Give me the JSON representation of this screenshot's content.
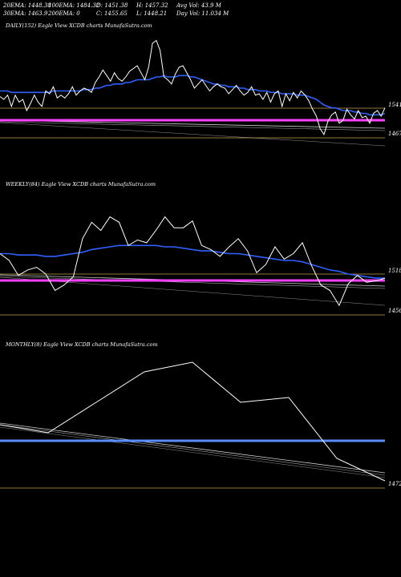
{
  "stats": {
    "ema20": "20EMA: 1448.38",
    "ema100": "100EMA: 1484.32",
    "open": "O: 1451.38",
    "high": "H: 1457.32",
    "avg_vol": "Avg Vol: 43.9 M",
    "ema30": "30EMA: 1463.9",
    "ema200": "200EMA: 0",
    "close": "C: 1455.65",
    "low": "L: 1448.21",
    "day_vol": "Day Vol: 11.034 M"
  },
  "colors": {
    "price": "#ffffff",
    "ema": "#3060ff",
    "level": "#ff40ff",
    "moving_avg": "#cccccc",
    "hline": "#c8a050"
  },
  "chart_data": [
    {
      "type": "line",
      "title": "DAILY(152) Eagle View XCDB charts MunafaSutra.com",
      "levels": {
        "upper": "1541",
        "lower": "1467"
      },
      "price": [
        0.54,
        0.52,
        0.55,
        0.47,
        0.55,
        0.5,
        0.52,
        0.44,
        0.49,
        0.55,
        0.5,
        0.47,
        0.58,
        0.56,
        0.61,
        0.53,
        0.55,
        0.53,
        0.56,
        0.61,
        0.55,
        0.58,
        0.6,
        0.59,
        0.57,
        0.64,
        0.68,
        0.73,
        0.69,
        0.65,
        0.71,
        0.67,
        0.65,
        0.68,
        0.72,
        0.74,
        0.76,
        0.71,
        0.66,
        0.75,
        0.92,
        0.94,
        0.87,
        0.68,
        0.66,
        0.63,
        0.7,
        0.75,
        0.76,
        0.71,
        0.66,
        0.6,
        0.63,
        0.66,
        0.62,
        0.58,
        0.61,
        0.63,
        0.61,
        0.6,
        0.56,
        0.59,
        0.62,
        0.58,
        0.55,
        0.57,
        0.61,
        0.55,
        0.56,
        0.52,
        0.57,
        0.5,
        0.56,
        0.58,
        0.47,
        0.56,
        0.51,
        0.57,
        0.53,
        0.58,
        0.55,
        0.51,
        0.45,
        0.4,
        0.31,
        0.27,
        0.36,
        0.41,
        0.43,
        0.35,
        0.37,
        0.45,
        0.41,
        0.38,
        0.44,
        0.39,
        0.4,
        0.35,
        0.42,
        0.44,
        0.4,
        0.46
      ],
      "ema": [
        0.58,
        0.58,
        0.58,
        0.57,
        0.57,
        0.57,
        0.57,
        0.57,
        0.57,
        0.57,
        0.57,
        0.57,
        0.57,
        0.57,
        0.58,
        0.58,
        0.58,
        0.58,
        0.58,
        0.58,
        0.58,
        0.58,
        0.59,
        0.59,
        0.59,
        0.6,
        0.6,
        0.61,
        0.62,
        0.62,
        0.63,
        0.63,
        0.63,
        0.64,
        0.64,
        0.65,
        0.66,
        0.66,
        0.66,
        0.66,
        0.67,
        0.68,
        0.68,
        0.69,
        0.68,
        0.68,
        0.68,
        0.69,
        0.69,
        0.69,
        0.68,
        0.68,
        0.67,
        0.66,
        0.65,
        0.64,
        0.63,
        0.63,
        0.62,
        0.62,
        0.61,
        0.61,
        0.61,
        0.6,
        0.6,
        0.59,
        0.59,
        0.59,
        0.58,
        0.58,
        0.58,
        0.57,
        0.57,
        0.57,
        0.56,
        0.56,
        0.56,
        0.56,
        0.55,
        0.55,
        0.55,
        0.54,
        0.53,
        0.52,
        0.5,
        0.48,
        0.47,
        0.46,
        0.46,
        0.45,
        0.44,
        0.44,
        0.44,
        0.43,
        0.43,
        0.42,
        0.42,
        0.41,
        0.41,
        0.41,
        0.41,
        0.42
      ]
    },
    {
      "type": "line",
      "title": "WEEKLY(84) Eagle View XCDB charts MunafaSutra.com",
      "levels": {
        "upper": "1518",
        "lower": "1456"
      },
      "price": [
        0.55,
        0.5,
        0.39,
        0.43,
        0.45,
        0.4,
        0.28,
        0.32,
        0.38,
        0.66,
        0.78,
        0.72,
        0.82,
        0.78,
        0.61,
        0.65,
        0.63,
        0.72,
        0.82,
        0.74,
        0.74,
        0.79,
        0.61,
        0.58,
        0.53,
        0.6,
        0.66,
        0.57,
        0.41,
        0.47,
        0.6,
        0.51,
        0.55,
        0.63,
        0.46,
        0.32,
        0.28,
        0.17,
        0.33,
        0.39,
        0.34,
        0.35,
        0.37
      ],
      "ema": [
        0.55,
        0.55,
        0.54,
        0.54,
        0.54,
        0.53,
        0.53,
        0.54,
        0.55,
        0.56,
        0.58,
        0.59,
        0.6,
        0.61,
        0.61,
        0.61,
        0.61,
        0.61,
        0.6,
        0.6,
        0.59,
        0.58,
        0.57,
        0.57,
        0.56,
        0.55,
        0.55,
        0.54,
        0.53,
        0.52,
        0.51,
        0.5,
        0.5,
        0.49,
        0.47,
        0.45,
        0.43,
        0.42,
        0.4,
        0.39,
        0.38,
        0.37,
        0.37
      ]
    },
    {
      "type": "line",
      "title": "MONTHLY(8) Eagle View XCDB charts MunafaSutra.com",
      "levels": {
        "upper": "",
        "lower": "1472"
      },
      "price": [
        0.55,
        0.5,
        0.69,
        0.88,
        0.94,
        0.69,
        0.72,
        0.34,
        0.2
      ]
    }
  ]
}
